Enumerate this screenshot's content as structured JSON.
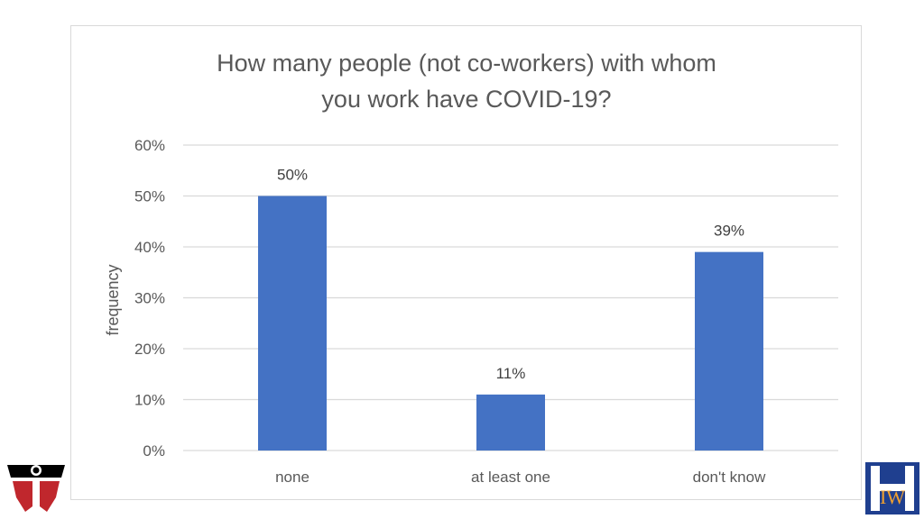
{
  "chart_data": {
    "type": "bar",
    "title": [
      "How many people (not co-workers) with whom",
      "you work have COVID-19?"
    ],
    "ylabel": "frequency",
    "xlabel": "",
    "categories": [
      "none",
      "at least one",
      "don't know"
    ],
    "values": [
      0.5,
      0.11,
      0.39
    ],
    "data_labels": [
      "50%",
      "11%",
      "39%"
    ],
    "ylim": [
      0,
      0.6
    ],
    "yticks": [
      0,
      0.1,
      0.2,
      0.3,
      0.4,
      0.5,
      0.6
    ],
    "ytick_labels": [
      "0%",
      "10%",
      "20%",
      "30%",
      "40%",
      "50%",
      "60%"
    ],
    "grid": true,
    "legend": "none",
    "bar_color": "#4472C4"
  },
  "logos": {
    "left": {
      "icon": "red-shield-logo-icon",
      "colors": [
        "#000000",
        "#c0272d"
      ]
    },
    "right": {
      "icon": "iwh-logo-icon",
      "text": "IW",
      "colors": [
        "#1f3f8f",
        "#f0a030"
      ]
    }
  }
}
